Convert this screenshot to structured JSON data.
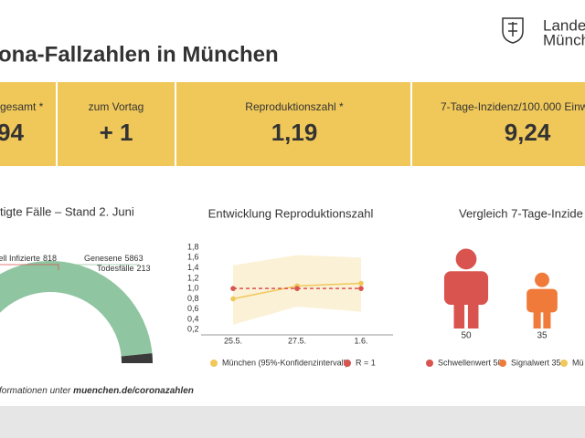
{
  "header": {
    "title": "ona-Fallzahlen in München",
    "logo_line1": "Landes",
    "logo_line2": "Münch"
  },
  "kpis": [
    {
      "label": "gesamt *",
      "value": "94"
    },
    {
      "label": "zum Vortag",
      "value": "+ 1"
    },
    {
      "label": "Reproduktionszahl *",
      "value": "1,19"
    },
    {
      "label": "7-Tage-Inzidenz/100.000 Einw",
      "value": "9,24"
    }
  ],
  "chart_data": [
    {
      "type": "gauge",
      "title": "tigte Fälle – Stand 2. Juni",
      "categories": [
        "ell Infizierte",
        "Genesene",
        "Todesfälle"
      ],
      "values": [
        818,
        5863,
        213
      ],
      "colors": [
        "#d9534f",
        "#8fc5a0",
        "#3a3a3a"
      ]
    },
    {
      "type": "line",
      "title": "Entwicklung Reproduktionszahl",
      "categories": [
        "25.5.",
        "27.5.",
        "1.6."
      ],
      "series": [
        {
          "name": "München (95%-Konfidenzintervall)",
          "color": "#f0c85a",
          "values": [
            0.8,
            1.05,
            1.1
          ],
          "lower": [
            0.3,
            0.65,
            0.55
          ],
          "upper": [
            1.45,
            1.65,
            1.6
          ]
        },
        {
          "name": "R = 1",
          "color": "#d9534f",
          "values": [
            1,
            1,
            1
          ]
        }
      ],
      "ylim": [
        0.1,
        1.8
      ],
      "yticks": [
        {
          "value": 0.2,
          "label": "0,2"
        },
        {
          "value": 0.4,
          "label": "0,4"
        },
        {
          "value": 0.6,
          "label": "0,6"
        },
        {
          "value": 0.8,
          "label": "0,8"
        },
        {
          "value": 1.0,
          "label": "1,0"
        },
        {
          "value": 1.2,
          "label": "1,2"
        },
        {
          "value": 1.4,
          "label": "1,4"
        },
        {
          "value": 1.6,
          "label": "1,6"
        },
        {
          "value": 1.8,
          "label": "1,8"
        }
      ]
    },
    {
      "type": "icons",
      "title": "Vergleich 7-Tage-Inzide",
      "series": [
        {
          "name": "Schwellenwert 50",
          "color": "#d9534f",
          "values": [
            50
          ]
        },
        {
          "name": "Signalwert 35",
          "color": "#f07a3a",
          "values": [
            35
          ]
        }
      ],
      "legend_extra": {
        "name": "Mü",
        "color": "#f0c85a"
      }
    }
  ],
  "footer": {
    "text": "formationen unter ",
    "link": "muenchen.de/coronazahlen"
  }
}
